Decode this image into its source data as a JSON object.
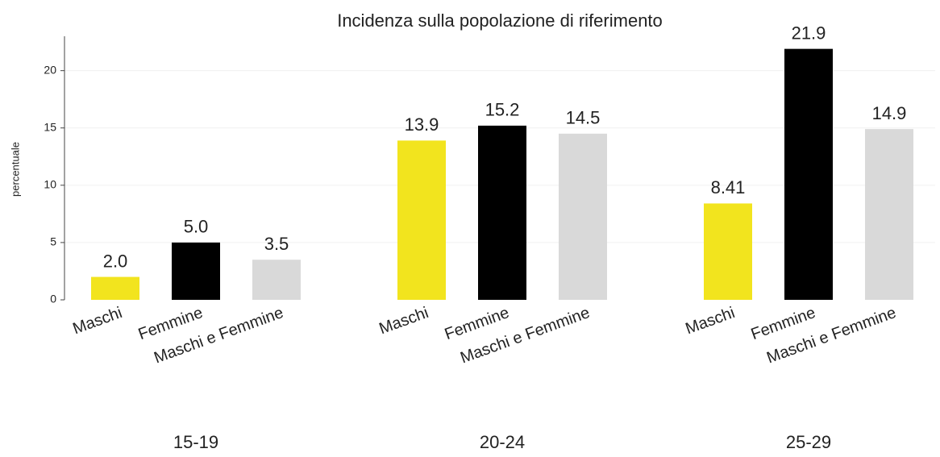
{
  "chart_data": {
    "type": "bar",
    "title": "Incidenza sulla popolazione di riferimento",
    "y_label": "percentuale",
    "categories": [
      "15-19",
      "20-24",
      "25-29"
    ],
    "series": [
      {
        "name": "Maschi",
        "color": "#f2e41e",
        "values": [
          2.0,
          13.9,
          8.41
        ],
        "value_labels": [
          "2.0",
          "13.9",
          "8.41"
        ]
      },
      {
        "name": "Femmine",
        "color": "#000000",
        "values": [
          5.0,
          15.2,
          21.9
        ],
        "value_labels": [
          "5.0",
          "15.2",
          "21.9"
        ]
      },
      {
        "name": "Maschi e Femmine",
        "color": "#d9d9d9",
        "values": [
          3.5,
          14.5,
          14.9
        ],
        "value_labels": [
          "3.5",
          "14.5",
          "14.9"
        ]
      }
    ],
    "ylim": [
      0,
      23
    ],
    "yticks": [
      0,
      5,
      10,
      15,
      20
    ],
    "grid": true
  }
}
